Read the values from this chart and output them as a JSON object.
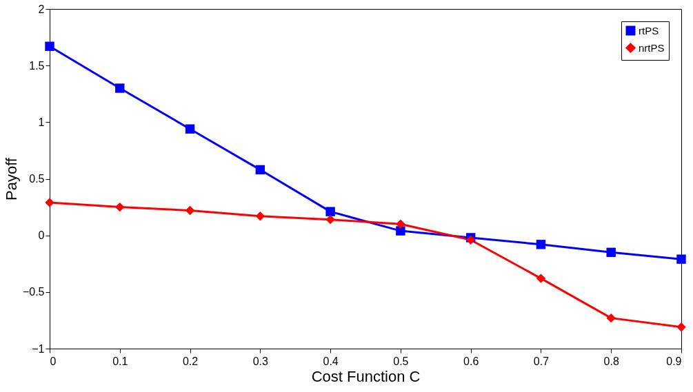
{
  "chart_data": {
    "type": "line",
    "xlabel": "Cost Function C",
    "ylabel": "Payoff",
    "x": [
      0,
      0.1,
      0.2,
      0.3,
      0.4,
      0.5,
      0.6,
      0.7,
      0.8,
      0.9
    ],
    "series": [
      {
        "name": "rtPS",
        "color": "#0000ff",
        "marker": "square",
        "values": [
          1.67,
          1.3,
          0.94,
          0.58,
          0.21,
          0.04,
          -0.02,
          -0.08,
          -0.15,
          -0.21
        ]
      },
      {
        "name": "nrtPS",
        "color": "#ff0000",
        "marker": "diamond",
        "values": [
          0.29,
          0.25,
          0.22,
          0.17,
          0.14,
          0.1,
          -0.04,
          -0.38,
          -0.73,
          -0.81
        ]
      }
    ],
    "xlim": [
      0,
      0.9
    ],
    "xticks": [
      0,
      0.1,
      0.2,
      0.3,
      0.4,
      0.5,
      0.6,
      0.7,
      0.8,
      0.9
    ],
    "ylim": [
      -1,
      2
    ],
    "yticks": [
      -1,
      -0.5,
      0,
      0.5,
      1,
      1.5,
      2
    ],
    "grid": false,
    "legend": "top right",
    "line_style": "solid"
  }
}
